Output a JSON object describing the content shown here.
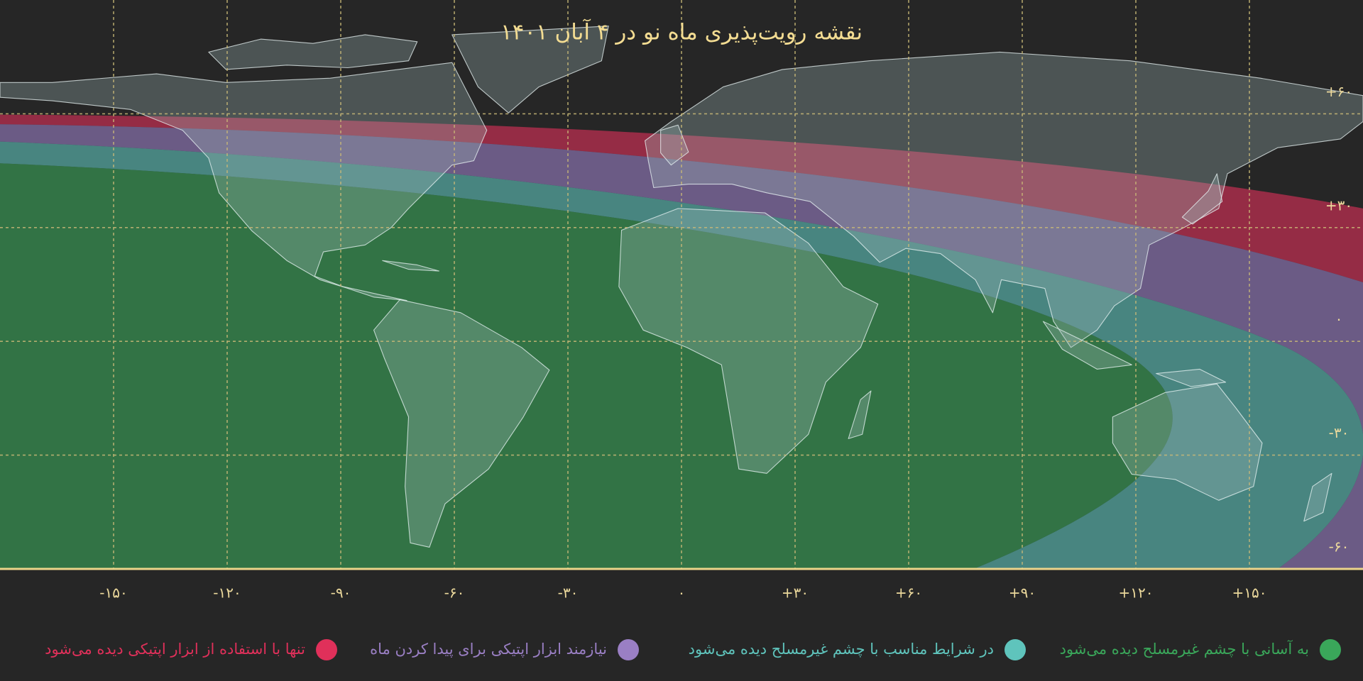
{
  "map": {
    "title": "نقشه رویت‌پذیری ماه نو در ۴ آبان ۱۴۰۱",
    "xlim": [
      -180,
      180
    ],
    "ylim": [
      -60,
      90
    ],
    "grid": true,
    "xticks": [
      {
        "value": -150,
        "label": "-۱۵۰"
      },
      {
        "value": -120,
        "label": "-۱۲۰"
      },
      {
        "value": -90,
        "label": "-۹۰"
      },
      {
        "value": -60,
        "label": "-۶۰"
      },
      {
        "value": -30,
        "label": "-۳۰"
      },
      {
        "value": 0,
        "label": "۰"
      },
      {
        "value": 30,
        "label": "+۳۰"
      },
      {
        "value": 60,
        "label": "+۶۰"
      },
      {
        "value": 90,
        "label": "+۹۰"
      },
      {
        "value": 120,
        "label": "+۱۲۰"
      },
      {
        "value": 150,
        "label": "+۱۵۰"
      }
    ],
    "yticks": [
      {
        "value": 60,
        "label": "+۶۰"
      },
      {
        "value": 30,
        "label": "+۳۰"
      },
      {
        "value": 0,
        "label": "۰"
      },
      {
        "value": -30,
        "label": "-۳۰"
      },
      {
        "value": -60,
        "label": "-۶۰"
      }
    ],
    "legend": [
      {
        "name": "به آسانی با چشم غیرمسلح دیده می‌شود",
        "color": "#3aa75a"
      },
      {
        "name": "در شرایط مناسب با چشم غیرمسلح دیده می‌شود",
        "color": "#5fc4bc"
      },
      {
        "name": "نیازمند ابزار اپتیکی برای پیدا کردن ماه",
        "color": "#9a7fc4"
      },
      {
        "name": "تنها با استفاده از ابزار اپتیکی دیده می‌شود",
        "color": "#e0305a"
      }
    ]
  }
}
